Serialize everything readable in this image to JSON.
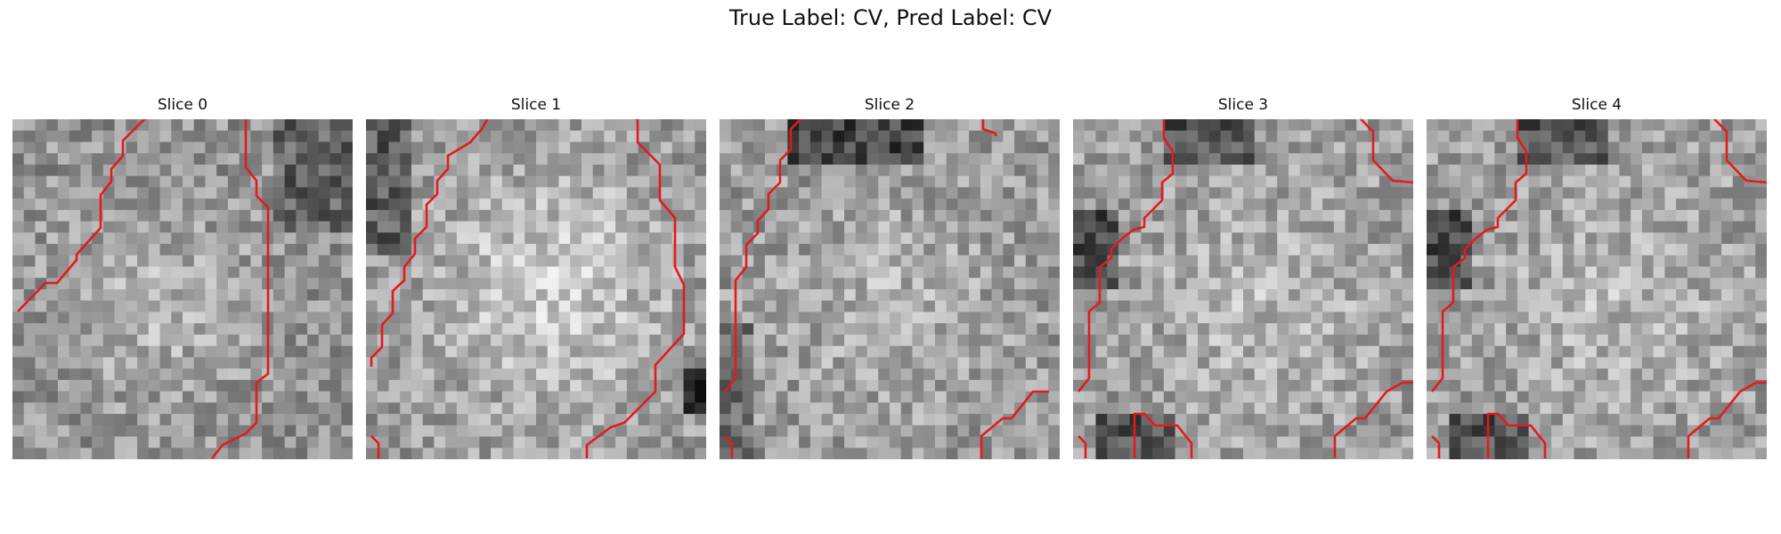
{
  "figure": {
    "title": "True Label: CV, Pred Label: CV",
    "slices": [
      {
        "title": "Slice 0",
        "seed": 11,
        "colormap": "gray",
        "contour_color": "#e41a1c"
      },
      {
        "title": "Slice 1",
        "seed": 23,
        "colormap": "gray",
        "contour_color": "#e41a1c"
      },
      {
        "title": "Slice 2",
        "seed": 37,
        "colormap": "gray",
        "contour_color": "#e41a1c"
      },
      {
        "title": "Slice 3",
        "seed": 41,
        "colormap": "gray",
        "contour_color": "#e41a1c"
      },
      {
        "title": "Slice 4",
        "seed": 41,
        "colormap": "gray",
        "contour_color": "#e41a1c"
      }
    ]
  }
}
